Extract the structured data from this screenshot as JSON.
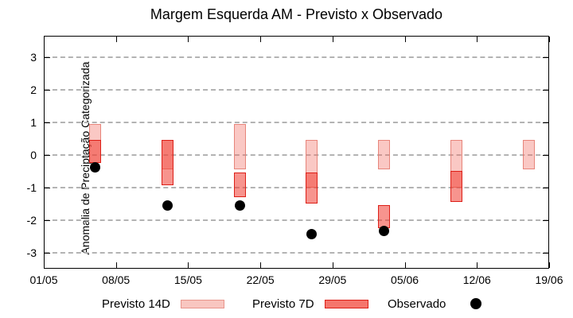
{
  "chart_data": {
    "type": "bar",
    "title": "Margem Esquerda AM - Previsto x Observado",
    "xlabel": "",
    "ylabel": "Anomalia de Preciptação Categorizada",
    "ylim": [
      -3.5,
      3.65
    ],
    "yticks": [
      3,
      2,
      1,
      0,
      -1,
      -2,
      -3
    ],
    "xlim_days": [
      0,
      49
    ],
    "xticks": [
      {
        "label": "01/05",
        "day": 0
      },
      {
        "label": "08/05",
        "day": 7
      },
      {
        "label": "15/05",
        "day": 14
      },
      {
        "label": "22/05",
        "day": 21
      },
      {
        "label": "29/05",
        "day": 28
      },
      {
        "label": "05/06",
        "day": 35
      },
      {
        "label": "12/06",
        "day": 42
      },
      {
        "label": "19/06",
        "day": 49
      }
    ],
    "grid": "horizontal-dashed",
    "legend_position": "bottom-outside",
    "legend": [
      {
        "label": "Previsto 14D",
        "swatch": "light-pink-bar"
      },
      {
        "label": "Previsto 7D",
        "swatch": "red-bar"
      },
      {
        "label": "Observado",
        "swatch": "black-dot"
      }
    ],
    "series": [
      {
        "name": "Previsto 14D",
        "type": "range-bar",
        "points": [
          {
            "date": "06/05",
            "day": 5,
            "range": [
              -0.25,
              0.95
            ]
          },
          {
            "date": "13/05",
            "day": 12,
            "range": [
              -0.45,
              0.45
            ]
          },
          {
            "date": "20/05",
            "day": 19,
            "range": [
              -0.45,
              0.95
            ]
          },
          {
            "date": "27/05",
            "day": 26,
            "range": [
              -1.0,
              0.45
            ]
          },
          {
            "date": "03/06",
            "day": 33,
            "range": [
              -0.45,
              0.45
            ]
          },
          {
            "date": "10/06",
            "day": 40,
            "range": [
              -1.0,
              0.45
            ]
          },
          {
            "date": "17/06",
            "day": 47,
            "range": [
              -0.45,
              0.45
            ]
          }
        ]
      },
      {
        "name": "Previsto 7D",
        "type": "range-bar",
        "points": [
          {
            "date": "06/05",
            "day": 5,
            "range": [
              -0.25,
              0.45
            ]
          },
          {
            "date": "13/05",
            "day": 12,
            "range": [
              -0.95,
              0.45
            ]
          },
          {
            "date": "20/05",
            "day": 19,
            "range": [
              -1.3,
              -0.55
            ]
          },
          {
            "date": "27/05",
            "day": 26,
            "range": [
              -1.5,
              -0.55
            ]
          },
          {
            "date": "03/06",
            "day": 33,
            "range": [
              -2.25,
              -1.55
            ]
          },
          {
            "date": "10/06",
            "day": 40,
            "range": [
              -1.45,
              -0.5
            ]
          }
        ]
      },
      {
        "name": "Observado",
        "type": "scatter",
        "points": [
          {
            "date": "06/05",
            "day": 5,
            "value": -0.4
          },
          {
            "date": "13/05",
            "day": 12,
            "value": -1.55
          },
          {
            "date": "20/05",
            "day": 19,
            "value": -1.55
          },
          {
            "date": "27/05",
            "day": 26,
            "value": -2.45
          },
          {
            "date": "03/06",
            "day": 33,
            "value": -2.35
          }
        ]
      }
    ],
    "colors": {
      "previsto_14d_fill": "#f8c6c0",
      "previsto_14d_border": "#e8958c",
      "previsto_7d_fill": "#f5756c",
      "previsto_7d_border": "#dd2018",
      "overlap_fill": "#ef5f55",
      "observado": "#000000",
      "gridline": "#b3b3b3",
      "frame": "#000000",
      "background": "#ffffff"
    }
  }
}
